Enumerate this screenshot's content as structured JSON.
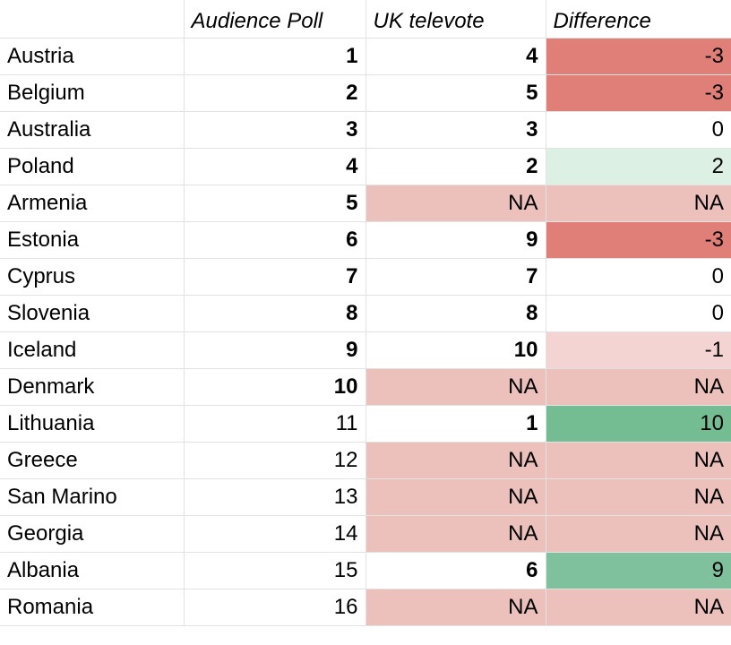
{
  "headers": [
    "",
    "Audience Poll",
    "UK televote",
    "Difference"
  ],
  "colors": {
    "strong_negative": "#e07f77",
    "na": "#ecc0bb",
    "light_negative": "#f4d4d2",
    "light_positive": "#ddf0e4",
    "strong_positive": "#74bc92",
    "positive": "#7fc19c",
    "none": "#ffffff"
  },
  "rows": [
    {
      "country": "Austria",
      "poll": "1",
      "poll_bold": true,
      "televote": "4",
      "televote_bold": true,
      "televote_bg": "none",
      "diff": "-3",
      "diff_bg": "strong_negative"
    },
    {
      "country": "Belgium",
      "poll": "2",
      "poll_bold": true,
      "televote": "5",
      "televote_bold": true,
      "televote_bg": "none",
      "diff": "-3",
      "diff_bg": "strong_negative"
    },
    {
      "country": "Australia",
      "poll": "3",
      "poll_bold": true,
      "televote": "3",
      "televote_bold": true,
      "televote_bg": "none",
      "diff": "0",
      "diff_bg": "none"
    },
    {
      "country": "Poland",
      "poll": "4",
      "poll_bold": true,
      "televote": "2",
      "televote_bold": true,
      "televote_bg": "none",
      "diff": "2",
      "diff_bg": "light_positive"
    },
    {
      "country": "Armenia",
      "poll": "5",
      "poll_bold": true,
      "televote": "NA",
      "televote_bold": false,
      "televote_bg": "na",
      "diff": "NA",
      "diff_bg": "na"
    },
    {
      "country": "Estonia",
      "poll": "6",
      "poll_bold": true,
      "televote": "9",
      "televote_bold": true,
      "televote_bg": "none",
      "diff": "-3",
      "diff_bg": "strong_negative"
    },
    {
      "country": "Cyprus",
      "poll": "7",
      "poll_bold": true,
      "televote": "7",
      "televote_bold": true,
      "televote_bg": "none",
      "diff": "0",
      "diff_bg": "none"
    },
    {
      "country": "Slovenia",
      "poll": "8",
      "poll_bold": true,
      "televote": "8",
      "televote_bold": true,
      "televote_bg": "none",
      "diff": "0",
      "diff_bg": "none"
    },
    {
      "country": "Iceland",
      "poll": "9",
      "poll_bold": true,
      "televote": "10",
      "televote_bold": true,
      "televote_bg": "none",
      "diff": "-1",
      "diff_bg": "light_negative"
    },
    {
      "country": "Denmark",
      "poll": "10",
      "poll_bold": true,
      "televote": "NA",
      "televote_bold": false,
      "televote_bg": "na",
      "diff": "NA",
      "diff_bg": "na"
    },
    {
      "country": "Lithuania",
      "poll": "11",
      "poll_bold": false,
      "televote": "1",
      "televote_bold": true,
      "televote_bg": "none",
      "diff": "10",
      "diff_bg": "strong_positive"
    },
    {
      "country": "Greece",
      "poll": "12",
      "poll_bold": false,
      "televote": "NA",
      "televote_bold": false,
      "televote_bg": "na",
      "diff": "NA",
      "diff_bg": "na"
    },
    {
      "country": "San Marino",
      "poll": "13",
      "poll_bold": false,
      "televote": "NA",
      "televote_bold": false,
      "televote_bg": "na",
      "diff": "NA",
      "diff_bg": "na"
    },
    {
      "country": "Georgia",
      "poll": "14",
      "poll_bold": false,
      "televote": "NA",
      "televote_bold": false,
      "televote_bg": "na",
      "diff": "NA",
      "diff_bg": "na"
    },
    {
      "country": "Albania",
      "poll": "15",
      "poll_bold": false,
      "televote": "6",
      "televote_bold": true,
      "televote_bg": "none",
      "diff": "9",
      "diff_bg": "positive"
    },
    {
      "country": "Romania",
      "poll": "16",
      "poll_bold": false,
      "televote": "NA",
      "televote_bold": false,
      "televote_bg": "na",
      "diff": "NA",
      "diff_bg": "na"
    }
  ]
}
